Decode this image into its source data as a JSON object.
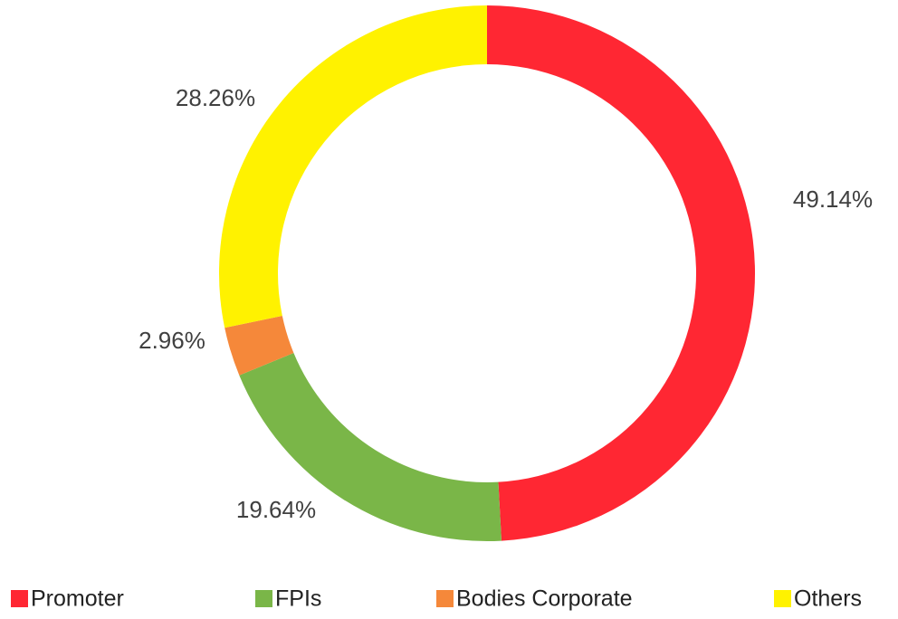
{
  "chart_data": {
    "type": "donut",
    "categories": [
      "Promoter",
      "FPIs",
      "Bodies Corporate",
      "Others"
    ],
    "values": [
      49.14,
      19.64,
      2.96,
      28.26
    ],
    "value_labels": [
      "49.14%",
      "19.64%",
      "2.96%",
      "28.26%"
    ],
    "colors": [
      "#ff2733",
      "#7ab648",
      "#f5883a",
      "#fff200"
    ],
    "legend": "bottom"
  }
}
